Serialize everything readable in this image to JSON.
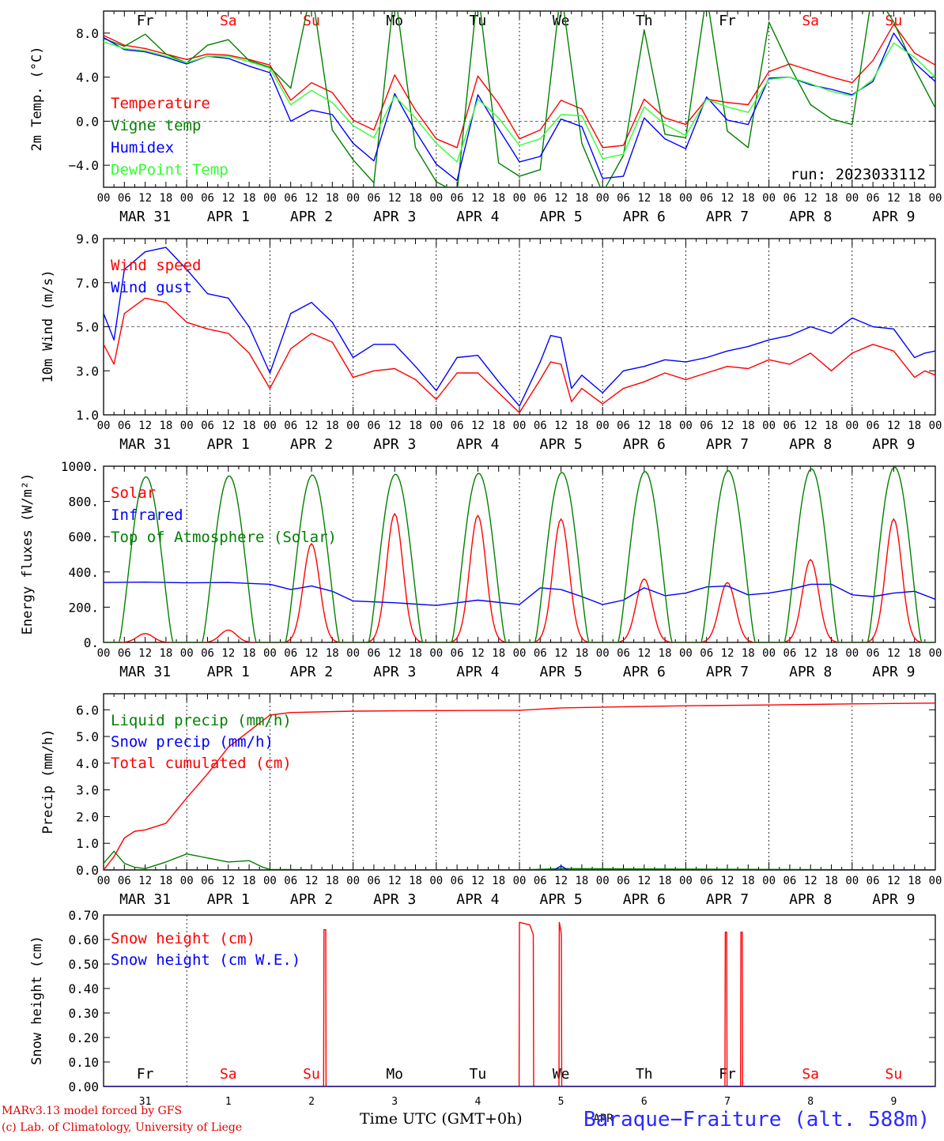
{
  "chart_data": [
    {
      "type": "line",
      "ylabel": "2m Temp. (°C)",
      "ylim": [
        -6.0,
        10.0
      ],
      "yticks": [
        -4.0,
        0.0,
        4.0,
        8.0
      ],
      "ytick_labels": [
        "−4.0",
        "0.0",
        "4.0",
        "8.0"
      ],
      "x_unit": "hours since MAR 31 00 UTC",
      "xlim": [
        0,
        240
      ],
      "annotation": "run: 2023033112",
      "reference_line": 0.0,
      "series": [
        {
          "name": "Temperature",
          "color": "#ff0000",
          "x": [
            0,
            6,
            12,
            18,
            24,
            30,
            36,
            42,
            48,
            54,
            60,
            66,
            72,
            78,
            84,
            90,
            96,
            102,
            108,
            114,
            120,
            126,
            132,
            138,
            144,
            150,
            156,
            162,
            168,
            174,
            180,
            186,
            192,
            198,
            204,
            210,
            216,
            222,
            228,
            234,
            240
          ],
          "y": [
            7.8,
            6.9,
            6.6,
            6.1,
            5.6,
            6.1,
            6.0,
            5.6,
            5.1,
            1.9,
            3.5,
            2.6,
            0.1,
            -0.8,
            4.2,
            1.0,
            -1.6,
            -2.4,
            4.1,
            1.6,
            -1.6,
            -0.8,
            1.9,
            1.1,
            -2.4,
            -2.2,
            2.0,
            0.3,
            -0.3,
            2.0,
            1.7,
            1.5,
            4.5,
            5.2,
            4.6,
            4.0,
            3.5,
            5.5,
            8.8,
            6.2,
            5.1
          ]
        },
        {
          "name": "Vigne temp",
          "color": "#008000",
          "x": [
            0,
            6,
            12,
            18,
            24,
            30,
            36,
            42,
            48,
            54,
            60,
            66,
            72,
            78,
            84,
            90,
            96,
            102,
            108,
            114,
            120,
            126,
            132,
            138,
            144,
            150,
            156,
            162,
            168,
            174,
            180,
            186,
            192,
            198,
            204,
            210,
            216,
            222,
            228,
            234,
            240
          ],
          "y": [
            7.5,
            6.8,
            7.9,
            6.1,
            5.3,
            6.9,
            7.4,
            5.5,
            4.9,
            3.0,
            12.0,
            -0.8,
            -3.5,
            -5.6,
            12.0,
            -2.4,
            -5.5,
            -6.5,
            12.0,
            -3.8,
            -5.0,
            -4.4,
            12.0,
            -2.0,
            -6.5,
            -3.1,
            8.3,
            -1.2,
            -1.5,
            11.5,
            -0.9,
            -2.4,
            9.0,
            5.0,
            1.5,
            0.2,
            -0.3,
            12.0,
            9.0,
            4.8,
            1.2
          ]
        },
        {
          "name": "Humidex",
          "color": "#0000ff",
          "x": [
            0,
            6,
            12,
            18,
            24,
            30,
            36,
            42,
            48,
            54,
            60,
            66,
            72,
            78,
            84,
            90,
            96,
            102,
            108,
            114,
            120,
            126,
            132,
            138,
            144,
            150,
            156,
            162,
            168,
            174,
            180,
            186,
            192,
            198,
            204,
            210,
            216,
            222,
            228,
            234,
            240
          ],
          "y": [
            7.6,
            6.5,
            6.3,
            5.8,
            5.2,
            5.9,
            5.7,
            5.0,
            4.4,
            0.0,
            1.0,
            0.6,
            -2.0,
            -3.6,
            2.5,
            -0.9,
            -3.9,
            -5.4,
            2.4,
            -0.7,
            -3.7,
            -3.2,
            0.2,
            -0.5,
            -5.2,
            -5.0,
            0.3,
            -1.6,
            -2.5,
            2.2,
            0.1,
            -0.3,
            3.9,
            4.0,
            3.3,
            2.9,
            2.4,
            3.6,
            8.0,
            5.3,
            3.6
          ]
        },
        {
          "name": "DewPoint Temp",
          "color": "#33ff33",
          "x": [
            0,
            6,
            12,
            18,
            24,
            30,
            36,
            42,
            48,
            54,
            60,
            66,
            72,
            78,
            84,
            90,
            96,
            102,
            108,
            114,
            120,
            126,
            132,
            138,
            144,
            150,
            156,
            162,
            168,
            174,
            180,
            186,
            192,
            198,
            204,
            210,
            216,
            222,
            228,
            234,
            240
          ],
          "y": [
            7.2,
            6.6,
            6.4,
            5.9,
            5.3,
            5.9,
            5.9,
            5.4,
            4.8,
            1.5,
            2.8,
            1.7,
            -0.4,
            -1.5,
            2.3,
            0.3,
            -2.0,
            -3.7,
            2.0,
            0.3,
            -2.2,
            -1.6,
            0.6,
            0.5,
            -3.4,
            -3.0,
            1.3,
            -0.3,
            -1.3,
            2.0,
            1.3,
            0.8,
            3.8,
            4.0,
            3.4,
            2.7,
            2.3,
            3.8,
            7.1,
            5.8,
            4.0
          ]
        }
      ]
    },
    {
      "type": "line",
      "ylabel": "10m Wind (m/s)",
      "ylim": [
        1.0,
        9.0
      ],
      "yticks": [
        1.0,
        3.0,
        5.0,
        7.0,
        9.0
      ],
      "ytick_labels": [
        "1.0",
        "3.0",
        "5.0",
        "7.0",
        "9.0"
      ],
      "xlim": [
        0,
        240
      ],
      "reference_line": 5.0,
      "series": [
        {
          "name": "Wind speed",
          "color": "#ff0000",
          "x": [
            0,
            3,
            6,
            12,
            18,
            24,
            30,
            36,
            42,
            48,
            54,
            60,
            66,
            72,
            78,
            84,
            90,
            96,
            102,
            108,
            114,
            120,
            126,
            129,
            132,
            135,
            138,
            144,
            150,
            156,
            162,
            168,
            174,
            180,
            186,
            192,
            198,
            204,
            210,
            216,
            222,
            228,
            234,
            237,
            240
          ],
          "y": [
            4.2,
            3.3,
            5.6,
            6.3,
            6.1,
            5.2,
            4.9,
            4.7,
            3.8,
            2.2,
            4.0,
            4.7,
            4.3,
            2.7,
            3.0,
            3.1,
            2.6,
            1.7,
            2.9,
            2.9,
            2.0,
            1.1,
            2.6,
            3.4,
            3.3,
            1.6,
            2.2,
            1.5,
            2.2,
            2.5,
            2.9,
            2.6,
            2.9,
            3.2,
            3.1,
            3.5,
            3.3,
            3.8,
            3.0,
            3.8,
            4.2,
            3.9,
            2.7,
            3.0,
            2.8
          ]
        },
        {
          "name": "Wind gust",
          "color": "#0000ff",
          "x": [
            0,
            3,
            6,
            12,
            18,
            24,
            30,
            36,
            42,
            48,
            54,
            60,
            66,
            72,
            78,
            84,
            90,
            96,
            102,
            108,
            114,
            120,
            126,
            129,
            132,
            135,
            138,
            144,
            150,
            156,
            162,
            168,
            174,
            180,
            186,
            192,
            198,
            204,
            210,
            216,
            222,
            228,
            234,
            237,
            240
          ],
          "y": [
            5.6,
            4.4,
            7.6,
            8.4,
            8.6,
            7.6,
            6.5,
            6.3,
            5.0,
            2.9,
            5.6,
            6.1,
            5.2,
            3.6,
            4.2,
            4.2,
            3.2,
            2.1,
            3.6,
            3.7,
            2.5,
            1.4,
            3.4,
            4.6,
            4.5,
            2.2,
            2.8,
            2.0,
            3.0,
            3.2,
            3.5,
            3.4,
            3.6,
            3.9,
            4.1,
            4.4,
            4.6,
            5.0,
            4.7,
            5.4,
            5.0,
            4.9,
            3.6,
            3.8,
            3.9
          ]
        }
      ]
    },
    {
      "type": "line",
      "ylabel": "Energy fluxes (W/m²)",
      "ylim": [
        0,
        1000
      ],
      "yticks": [
        0,
        200,
        400,
        600,
        800,
        1000
      ],
      "ytick_labels": [
        "0.",
        "200.",
        "400.",
        "600.",
        "800.",
        "1000."
      ],
      "xlim": [
        0,
        240
      ],
      "series": [
        {
          "name": "Solar",
          "color": "#ff0000",
          "daily_peak": [
            50,
            70,
            560,
            730,
            720,
            700,
            360,
            340,
            470,
            700
          ]
        },
        {
          "name": "Infrared",
          "color": "#0000ff",
          "x": [
            0,
            12,
            24,
            36,
            48,
            54,
            60,
            66,
            72,
            78,
            84,
            96,
            108,
            120,
            126,
            132,
            138,
            144,
            150,
            156,
            162,
            168,
            174,
            180,
            186,
            192,
            198,
            204,
            210,
            216,
            222,
            228,
            234,
            240
          ],
          "y": [
            340,
            342,
            338,
            340,
            330,
            300,
            320,
            290,
            235,
            230,
            225,
            210,
            240,
            215,
            310,
            300,
            260,
            215,
            240,
            310,
            265,
            280,
            315,
            320,
            270,
            280,
            300,
            330,
            330,
            270,
            260,
            280,
            290,
            245
          ]
        },
        {
          "name": "Top of Atmosphere (Solar)",
          "color": "#008000",
          "daily_peak": [
            940,
            945,
            950,
            955,
            960,
            965,
            970,
            975,
            985,
            995
          ]
        }
      ]
    },
    {
      "type": "line",
      "ylabel": "Precip (mm/h)",
      "ylim": [
        0.0,
        6.6
      ],
      "yticks": [
        0.0,
        1.0,
        2.0,
        3.0,
        4.0,
        5.0,
        6.0
      ],
      "ytick_labels": [
        "0.0",
        "1.0",
        "2.0",
        "3.0",
        "4.0",
        "5.0",
        "6.0"
      ],
      "xlim": [
        0,
        240
      ],
      "series": [
        {
          "name": "Liquid precip (mm/h)",
          "color": "#008000",
          "x": [
            0,
            3,
            6,
            9,
            12,
            18,
            24,
            30,
            36,
            42,
            46,
            48,
            72,
            120,
            132,
            240
          ],
          "y": [
            0.25,
            0.7,
            0.25,
            0.1,
            0.05,
            0.3,
            0.6,
            0.45,
            0.3,
            0.35,
            0.1,
            0.02,
            0.0,
            0.0,
            0.05,
            0.0
          ]
        },
        {
          "name": "Snow precip (mm/h)",
          "color": "#0000ff",
          "x": [
            0,
            120,
            130,
            132,
            134,
            240
          ],
          "y": [
            0.0,
            0.0,
            0.0,
            0.15,
            0.0,
            0.0
          ]
        },
        {
          "name": "Total cumulated (cm)",
          "color": "#ff0000",
          "x": [
            0,
            3,
            6,
            9,
            12,
            18,
            24,
            30,
            36,
            42,
            48,
            54,
            72,
            96,
            120,
            132,
            144,
            168,
            192,
            216,
            240
          ],
          "y": [
            0.0,
            0.5,
            1.2,
            1.45,
            1.5,
            1.75,
            2.7,
            3.6,
            4.6,
            5.2,
            5.8,
            5.9,
            5.95,
            5.97,
            5.98,
            6.07,
            6.1,
            6.15,
            6.18,
            6.22,
            6.25
          ]
        }
      ]
    },
    {
      "type": "line",
      "ylabel": "Snow height (cm)",
      "ylim": [
        0.0,
        0.7
      ],
      "yticks": [
        0.0,
        0.1,
        0.2,
        0.3,
        0.4,
        0.5,
        0.6,
        0.7
      ],
      "ytick_labels": [
        "0.00",
        "0.10",
        "0.20",
        "0.30",
        "0.40",
        "0.50",
        "0.60",
        "0.70"
      ],
      "xlim": [
        0,
        240
      ],
      "x_tick_labels": [
        "31",
        "1",
        "2",
        "3",
        "4",
        "5",
        "6",
        "7",
        "8",
        "9"
      ],
      "series": [
        {
          "name": "Snow height (cm)",
          "color": "#ff0000",
          "x": [
            0,
            63.5,
            63.6,
            64.1,
            64.2,
            119.9,
            120,
            123,
            124,
            124.1,
            131.4,
            131.5,
            131.9,
            132.1,
            132.2,
            179.3,
            179.4,
            179.8,
            179.9,
            183.8,
            183.9,
            184.3,
            184.4,
            240
          ],
          "y": [
            0,
            0,
            0.64,
            0.64,
            0,
            0,
            0.67,
            0.66,
            0.62,
            0,
            0,
            0.67,
            0.64,
            0.62,
            0,
            0,
            0.63,
            0.63,
            0,
            0,
            0.63,
            0.63,
            0,
            0
          ]
        },
        {
          "name": "Snow height (cm W.E.)",
          "color": "#0000ff",
          "x": [
            0,
            240
          ],
          "y": [
            0,
            0
          ]
        }
      ]
    }
  ],
  "day_names": [
    "Fr",
    "Sa",
    "Su",
    "Mo",
    "Tu",
    "We",
    "Th",
    "Fr",
    "Sa",
    "Su"
  ],
  "weekend_days": [
    "Sa",
    "Su"
  ],
  "date_labels": [
    "MAR 31",
    "APR  1",
    "APR  2",
    "APR  3",
    "APR  4",
    "APR  5",
    "APR  6",
    "APR  7",
    "APR  8",
    "APR  9"
  ],
  "hour_ticks": [
    "00",
    "06",
    "12",
    "18"
  ],
  "hour_end": "00",
  "colors": {
    "red": "#ff0000",
    "green": "#008000",
    "blue": "#0000ff",
    "lightgreen": "#33ff33",
    "weekend": "#ff0000",
    "weekday": "#000000"
  },
  "footer": {
    "model_line": "MARv3.13 model forced by GFS",
    "credit_line": "(c) Lab. of Climatology, University of Liege",
    "x_axis_title": "Time UTC (GMT+0h)",
    "month_label": "APR",
    "station": "Baraque−Fraiture (alt. 588m)"
  }
}
